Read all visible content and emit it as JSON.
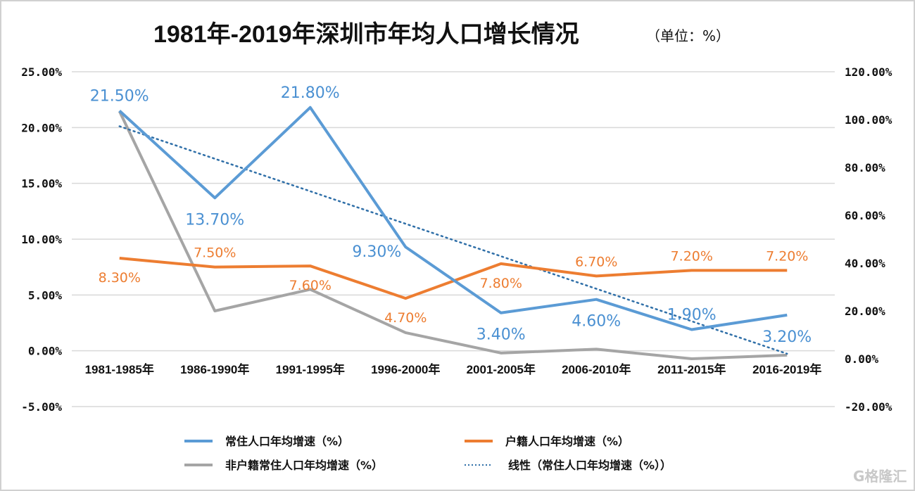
{
  "chart_data": {
    "type": "line",
    "title": "1981年-2019年深圳市年均人口增长情况",
    "subtitle": "（单位：%）",
    "categories": [
      "1981-1985年",
      "1986-1990年",
      "1991-1995年",
      "1996-2000年",
      "2001-2005年",
      "2006-2010年",
      "2011-2015年",
      "2016-2019年"
    ],
    "y_left": {
      "range": [
        -5,
        25
      ],
      "step": 5,
      "ticks": [
        "-5.00%",
        "0.00%",
        "5.00%",
        "10.00%",
        "15.00%",
        "20.00%",
        "25.00%"
      ]
    },
    "y_right": {
      "range": [
        -20,
        120
      ],
      "step": 20,
      "ticks": [
        "-20.00%",
        "0.00%",
        "20.00%",
        "40.00%",
        "60.00%",
        "80.00%",
        "100.00%",
        "120.00%"
      ]
    },
    "grid": true,
    "legend_position": "bottom",
    "series": [
      {
        "name": "常住人口年均增速（%）",
        "axis": "left",
        "color": "#5b9bd5",
        "values": [
          21.5,
          13.7,
          21.8,
          9.3,
          3.4,
          4.6,
          1.9,
          3.2
        ],
        "labels": [
          "21.50%",
          "13.70%",
          "21.80%",
          "9.30%",
          "3.40%",
          "4.60%",
          "1.90%",
          "3.20%"
        ],
        "label_positions": [
          "above",
          "below",
          "above",
          "left",
          "below",
          "below",
          "above",
          "below"
        ]
      },
      {
        "name": "户籍人口年均增速（%）",
        "axis": "left",
        "color": "#ed7d31",
        "values": [
          8.3,
          7.5,
          7.6,
          4.7,
          7.8,
          6.7,
          7.2,
          7.2
        ],
        "labels": [
          "8.30%",
          "7.50%",
          "7.60%",
          "4.70%",
          "7.80%",
          "6.70%",
          "7.20%",
          "7.20%"
        ],
        "label_positions": [
          "below",
          "above",
          "below",
          "below",
          "below",
          "above",
          "above",
          "above"
        ]
      },
      {
        "name": "非户籍常住人口年均增速（%）",
        "axis": "right",
        "color": "#a5a5a5",
        "values": [
          103.5,
          20.0,
          29.0,
          10.9,
          2.4,
          4.0,
          0.0,
          1.5
        ]
      },
      {
        "name": "线性（常住人口年均增速（%））",
        "axis": "left",
        "color": "#2f6fa8",
        "style": "dotted",
        "trendline_of": "常住人口年均增速（%）",
        "trend_type": "linear"
      }
    ]
  },
  "watermark": "格隆汇"
}
